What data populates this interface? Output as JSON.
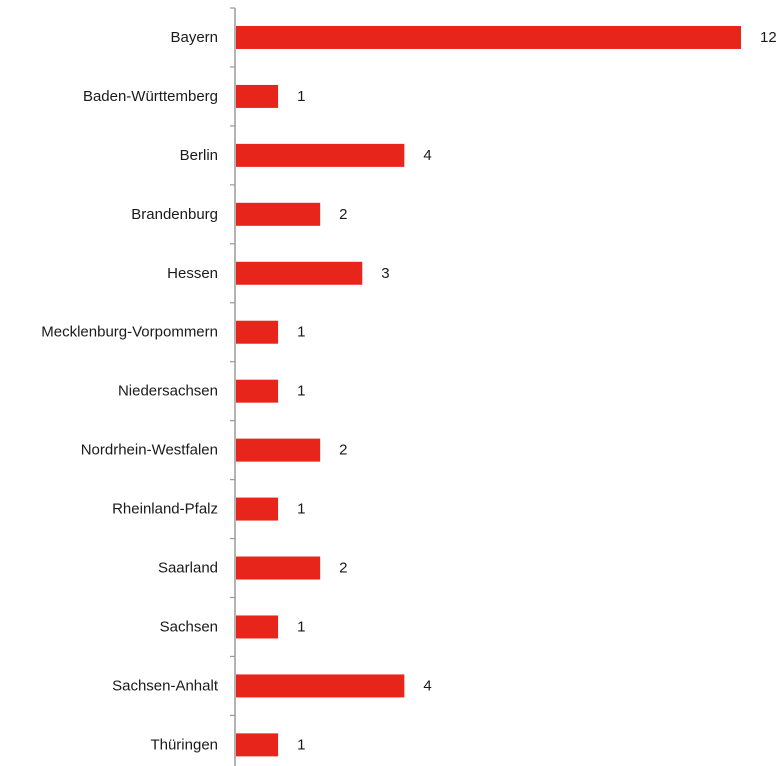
{
  "chart_data": {
    "type": "bar",
    "orientation": "horizontal",
    "categories": [
      "Bayern",
      "Baden-Württemberg",
      "Berlin",
      "Brandenburg",
      "Hessen",
      "Mecklenburg-Vorpommern",
      "Niedersachsen",
      "Nordrhein-Westfalen",
      "Rheinland-Pfalz",
      "Saarland",
      "Sachsen",
      "Sachsen-Anhalt",
      "Thüringen"
    ],
    "values": [
      12,
      1,
      4,
      2,
      3,
      1,
      1,
      2,
      1,
      2,
      1,
      4,
      1
    ],
    "data_labels": [
      "12",
      "1",
      "4",
      "2",
      "3",
      "1",
      "1",
      "2",
      "1",
      "2",
      "1",
      "4",
      "1"
    ],
    "xlim": [
      0,
      12
    ],
    "bar_color": "#e8251b",
    "grid": false,
    "legend": "none"
  }
}
